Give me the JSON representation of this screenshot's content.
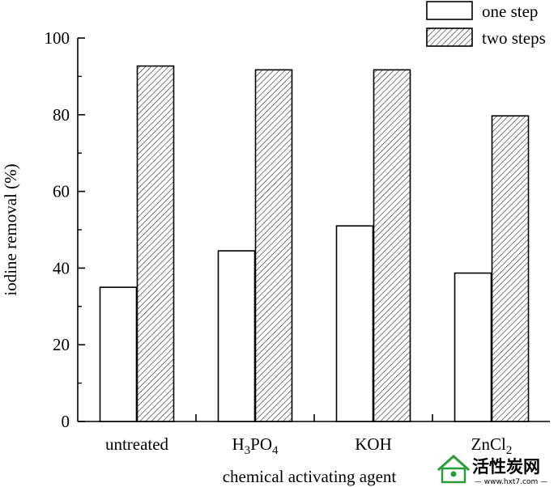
{
  "chart_data": {
    "type": "bar",
    "categories": [
      "untreated",
      "H3PO4",
      "KOH",
      "ZnCl2"
    ],
    "category_labels": [
      {
        "base": "untreated",
        "parts": [
          {
            "t": "untreated",
            "sub": false
          }
        ]
      },
      {
        "base": "H3PO4",
        "parts": [
          {
            "t": "H",
            "sub": false
          },
          {
            "t": "3",
            "sub": true
          },
          {
            "t": "PO",
            "sub": false
          },
          {
            "t": "4",
            "sub": true
          }
        ]
      },
      {
        "base": "KOH",
        "parts": [
          {
            "t": "KOH",
            "sub": false
          }
        ]
      },
      {
        "base": "ZnCl2",
        "parts": [
          {
            "t": "ZnCl",
            "sub": false
          },
          {
            "t": "2",
            "sub": true
          }
        ]
      }
    ],
    "series": [
      {
        "name": "one step",
        "values": [
          35,
          44.5,
          51,
          38.7
        ],
        "fill": "#ffffff"
      },
      {
        "name": "two steps",
        "values": [
          92.7,
          91.7,
          91.7,
          79.7
        ],
        "fill": "hatch"
      }
    ],
    "xlabel": "chemical activating agent",
    "ylabel": "iodine removal (%)",
    "ylim": [
      0,
      100
    ],
    "yticks": [
      0,
      20,
      40,
      60,
      80,
      100
    ],
    "grid": false,
    "legend_position": "top-right"
  },
  "watermark": {
    "title": "活性炭网",
    "url": "— www.hxt7.com —",
    "color": "#2a9d3a"
  }
}
